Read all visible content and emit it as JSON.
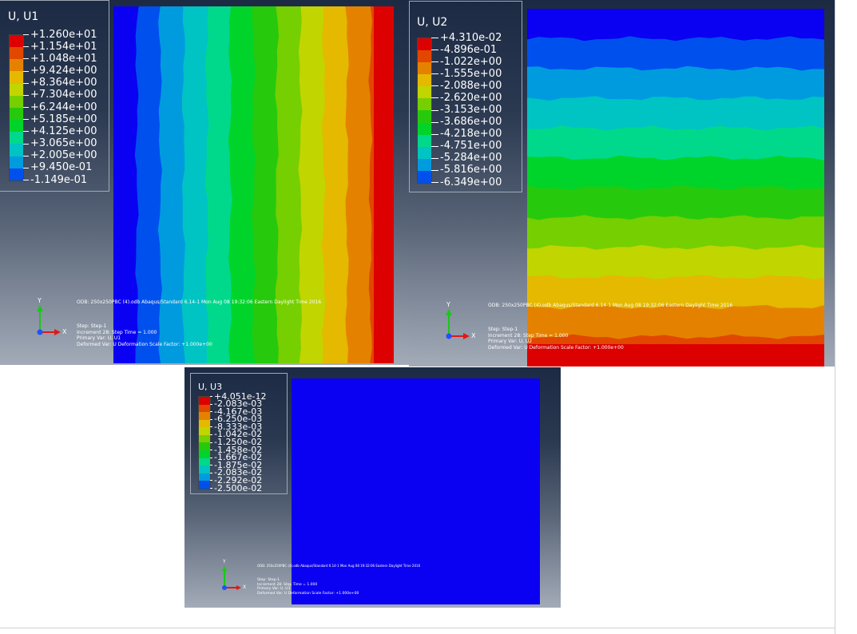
{
  "colors": {
    "bands": [
      "#0a00f2",
      "#0050ee",
      "#009bdf",
      "#00c3c3",
      "#00d98c",
      "#00d42a",
      "#27c90d",
      "#76cf00",
      "#c1d500",
      "#e4b900",
      "#e48200",
      "#e24700",
      "#dd0000"
    ]
  },
  "panels": [
    {
      "title": "U, U1",
      "labels": [
        "+1.260e+01",
        "+1.154e+01",
        "+1.048e+01",
        "+9.424e+00",
        "+8.364e+00",
        "+7.304e+00",
        "+6.244e+00",
        "+5.185e+00",
        "+4.125e+00",
        "+3.065e+00",
        "+2.005e+00",
        "+9.450e-01",
        "-1.149e-01"
      ],
      "odb_line": "ODB: 250x250PBC (4).odb    Abaqus/Standard 6.14-1    Mon Aug 08 19:32:06 Eastern Daylight Time 2016",
      "step_line": "Step: Step-1",
      "increment_line": "Increment     28: Step Time =    1.000",
      "primary_line": "Primary Var: U, U1",
      "deformed_line": "Deformed Var: U   Deformation Scale Factor: +1.000e+00"
    },
    {
      "title": "U, U2",
      "labels": [
        "+4.310e-02",
        "-4.896e-01",
        "-1.022e+00",
        "-1.555e+00",
        "-2.088e+00",
        "-2.620e+00",
        "-3.153e+00",
        "-3.686e+00",
        "-4.218e+00",
        "-4.751e+00",
        "-5.284e+00",
        "-5.816e+00",
        "-6.349e+00"
      ],
      "odb_line": "ODB: 250x250PBC (4).odb    Abaqus/Standard 6.14-1    Mon Aug 08 19:32:06 Eastern Daylight Time 2016",
      "step_line": "Step: Step-1",
      "increment_line": "Increment     28: Step Time =    1.000",
      "primary_line": "Primary Var: U, U2",
      "deformed_line": "Deformed Var: U   Deformation Scale Factor: +1.000e+00"
    },
    {
      "title": "U, U3",
      "labels": [
        "+4.051e-12",
        "-2.083e-03",
        "-4.167e-03",
        "-6.250e-03",
        "-8.333e-03",
        "-1.042e-02",
        "-1.250e-02",
        "-1.458e-02",
        "-1.667e-02",
        "-1.875e-02",
        "-2.083e-02",
        "-2.292e-02",
        "-2.500e-02"
      ],
      "odb_line": "ODB: 250x250PBC (4).odb    Abaqus/Standard 6.14-1    Mon Aug 08 19:32:06 Eastern Daylight Time 2016",
      "step_line": "Step: Step-1",
      "increment_line": "Increment     28: Step Time =    1.000",
      "primary_line": "Primary Var: U, U3",
      "deformed_line": "Deformed Var: U   Deformation Scale Factor: +1.000e+00"
    }
  ],
  "triad": {
    "y": "Y",
    "x": "X"
  }
}
